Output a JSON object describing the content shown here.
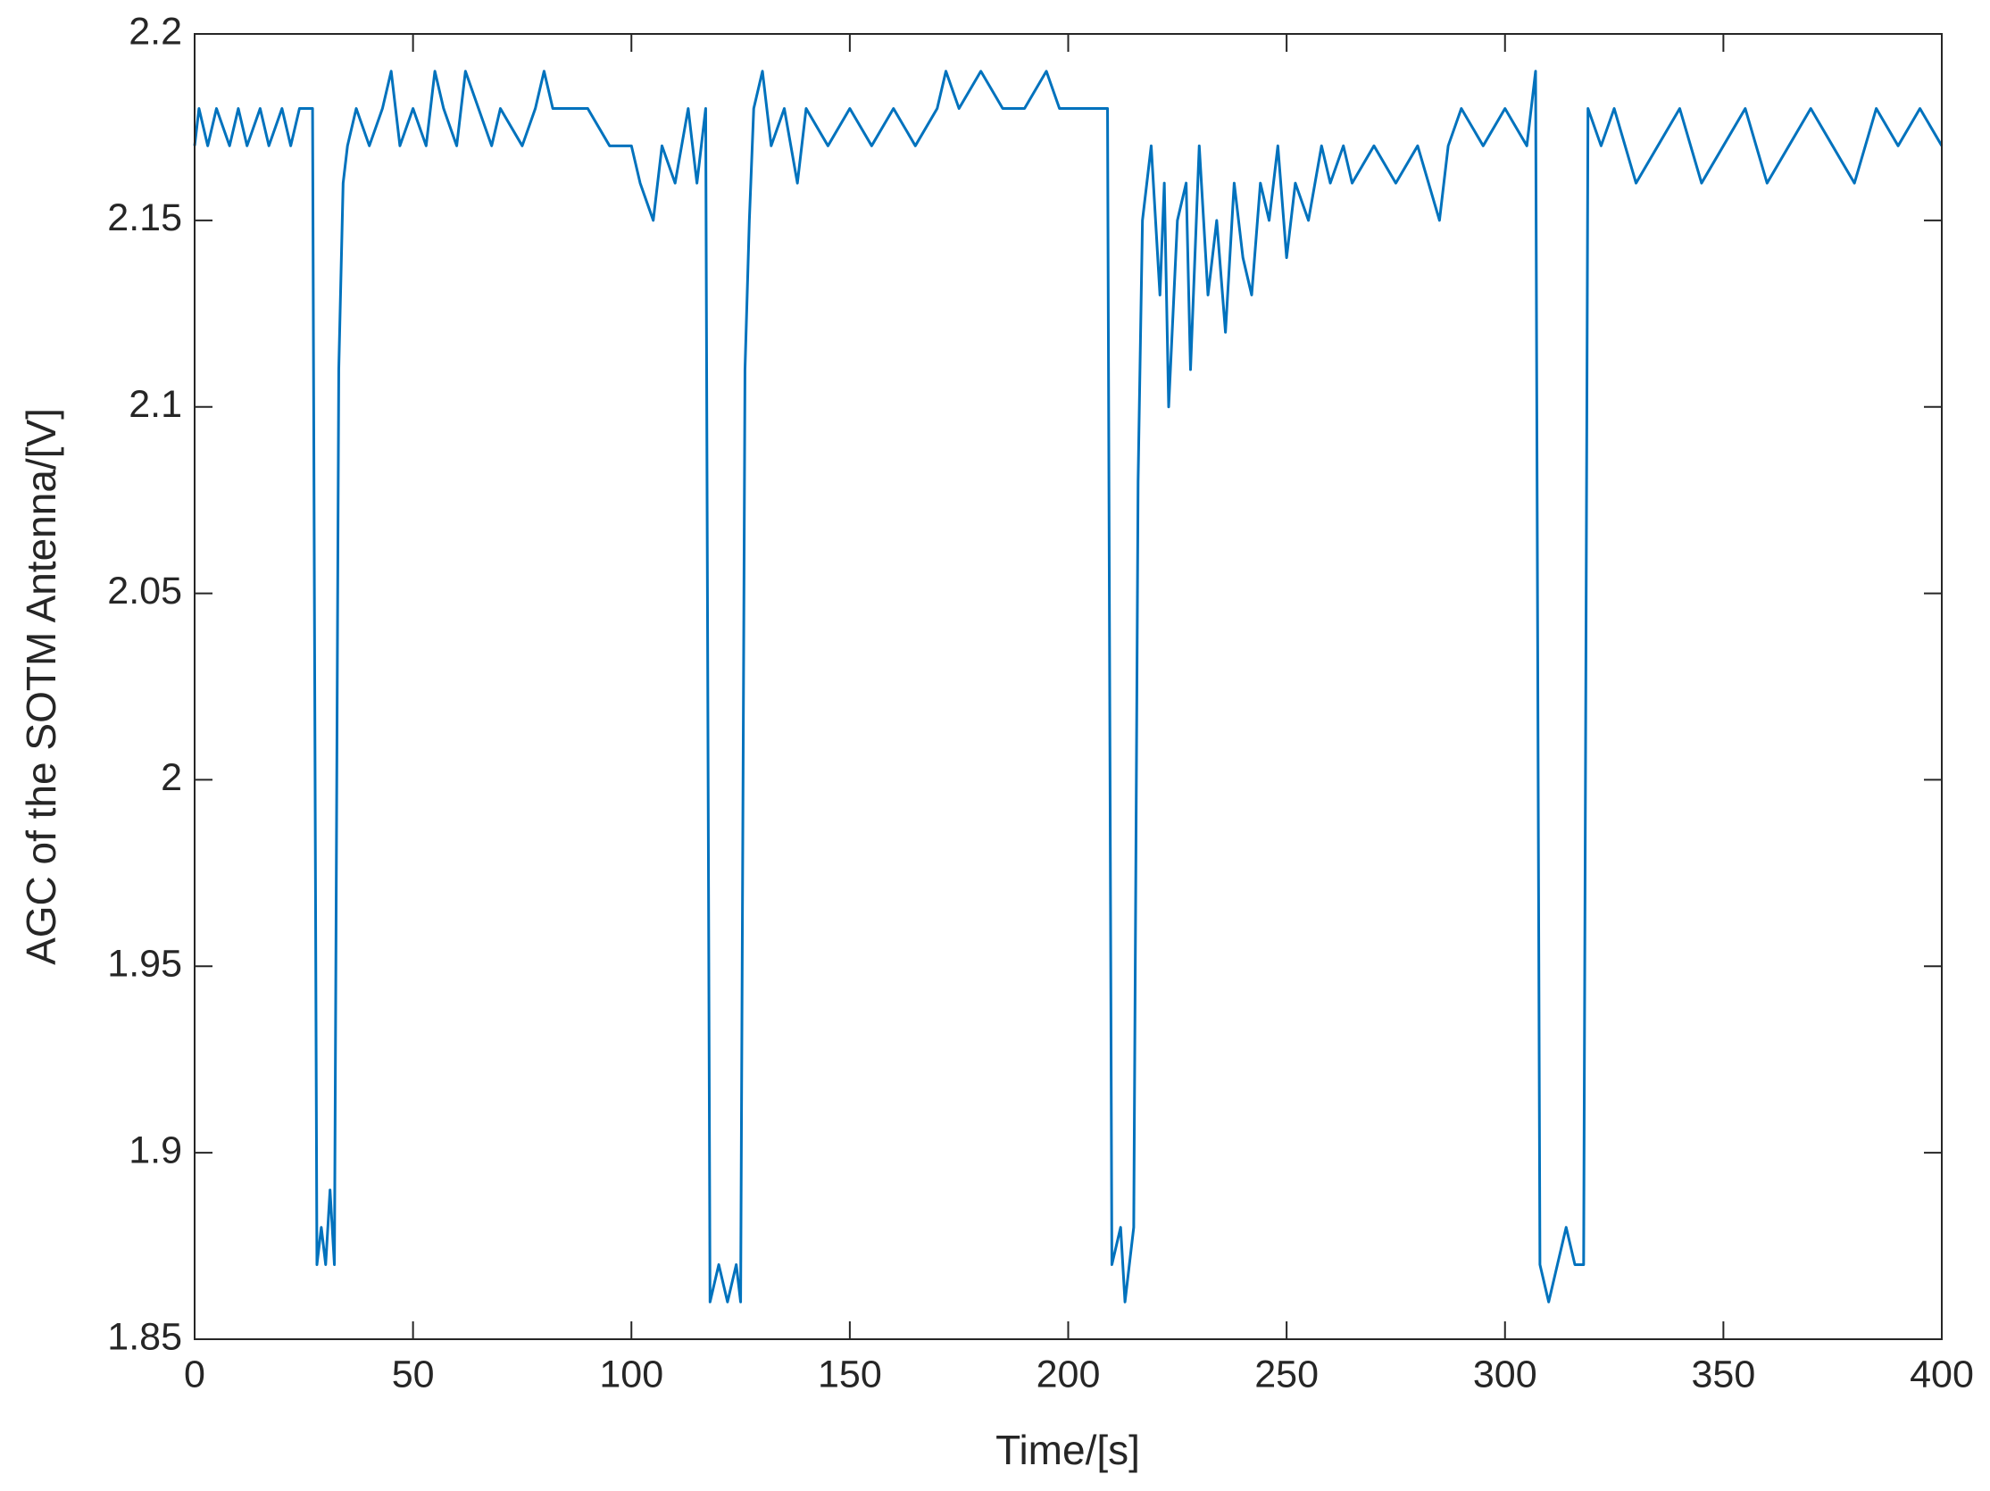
{
  "chart_data": {
    "type": "line",
    "xlabel": "Time/[s]",
    "ylabel": "AGC of the SOTM Antenna/[V]",
    "x": [
      0,
      1,
      3,
      5,
      8,
      10,
      12,
      15,
      17,
      20,
      22,
      24,
      27,
      28,
      29,
      30,
      31,
      32,
      33,
      34,
      35,
      37,
      40,
      43,
      45,
      47,
      50,
      53,
      55,
      57,
      60,
      62,
      65,
      68,
      70,
      75,
      78,
      80,
      82,
      90,
      95,
      100,
      102,
      105,
      107,
      110,
      113,
      115,
      117,
      118,
      120,
      122,
      124,
      125,
      126,
      127,
      128,
      130,
      132,
      135,
      138,
      140,
      145,
      150,
      155,
      160,
      165,
      170,
      172,
      175,
      180,
      185,
      190,
      195,
      198,
      205,
      209,
      210,
      212,
      213,
      215,
      216,
      217,
      219,
      221,
      222,
      223,
      225,
      227,
      228,
      230,
      232,
      234,
      236,
      238,
      240,
      242,
      244,
      246,
      248,
      250,
      252,
      255,
      258,
      260,
      263,
      265,
      270,
      275,
      280,
      285,
      287,
      290,
      295,
      300,
      305,
      307,
      308,
      310,
      312,
      314,
      316,
      318,
      319,
      322,
      325,
      330,
      335,
      340,
      345,
      350,
      355,
      360,
      365,
      370,
      375,
      380,
      385,
      390,
      395,
      400
    ],
    "series": [
      {
        "color": "#0072bd",
        "values": [
          2.17,
          2.18,
          2.17,
          2.18,
          2.17,
          2.18,
          2.17,
          2.18,
          2.17,
          2.18,
          2.17,
          2.18,
          2.18,
          1.87,
          1.88,
          1.87,
          1.89,
          1.87,
          2.11,
          2.16,
          2.17,
          2.18,
          2.17,
          2.18,
          2.19,
          2.17,
          2.18,
          2.17,
          2.19,
          2.18,
          2.17,
          2.19,
          2.18,
          2.17,
          2.18,
          2.17,
          2.18,
          2.19,
          2.18,
          2.18,
          2.17,
          2.17,
          2.16,
          2.15,
          2.17,
          2.16,
          2.18,
          2.16,
          2.18,
          1.86,
          1.87,
          1.86,
          1.87,
          1.86,
          2.11,
          2.15,
          2.18,
          2.19,
          2.17,
          2.18,
          2.16,
          2.18,
          2.17,
          2.18,
          2.17,
          2.18,
          2.17,
          2.18,
          2.19,
          2.18,
          2.19,
          2.18,
          2.18,
          2.19,
          2.18,
          2.18,
          2.18,
          1.87,
          1.88,
          1.86,
          1.88,
          2.08,
          2.15,
          2.17,
          2.13,
          2.16,
          2.1,
          2.15,
          2.16,
          2.11,
          2.17,
          2.13,
          2.15,
          2.12,
          2.16,
          2.14,
          2.13,
          2.16,
          2.15,
          2.17,
          2.14,
          2.16,
          2.15,
          2.17,
          2.16,
          2.17,
          2.16,
          2.17,
          2.16,
          2.17,
          2.15,
          2.17,
          2.18,
          2.17,
          2.18,
          2.17,
          2.19,
          1.87,
          1.86,
          1.87,
          1.88,
          1.87,
          1.87,
          2.18,
          2.17,
          2.18,
          2.16,
          2.17,
          2.18,
          2.16,
          2.17,
          2.18,
          2.16,
          2.17,
          2.18,
          2.17,
          2.16,
          2.18,
          2.17,
          2.18,
          2.17
        ]
      }
    ],
    "xlim": [
      0,
      400
    ],
    "xticks": [
      0,
      50,
      100,
      150,
      200,
      250,
      300,
      350,
      400
    ],
    "ylim": [
      1.85,
      2.2
    ],
    "yticks": [
      1.85,
      1.9,
      1.95,
      2,
      2.05,
      2.1,
      2.15,
      2.2
    ]
  }
}
